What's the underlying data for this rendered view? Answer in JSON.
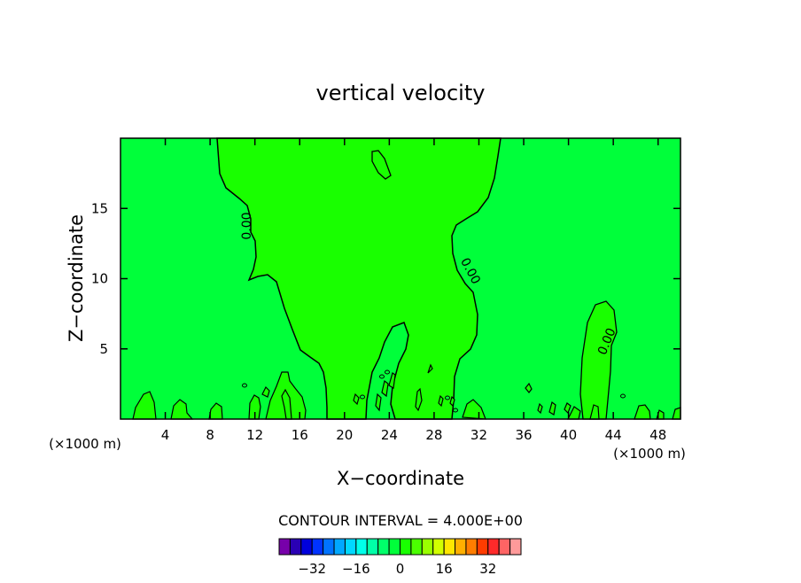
{
  "chart_data": {
    "type": "contour",
    "title": "vertical velocity",
    "xlabel": "X−coordinate",
    "ylabel": "Z−coordinate",
    "x_scale_note": "(×1000 m)",
    "x_scale_note_right": "(×1000 m)",
    "xlim": [
      0,
      50
    ],
    "ylim": [
      0,
      20
    ],
    "x_ticks": [
      4,
      8,
      12,
      16,
      20,
      24,
      28,
      32,
      36,
      40,
      44,
      48
    ],
    "y_ticks": [
      5,
      10,
      15
    ],
    "contour_interval_text": "CONTOUR INTERVAL = 4.000E+00",
    "contour_labels": [
      "0.00",
      "0.00",
      "0.00"
    ],
    "colorbar": {
      "ticks": [
        -32,
        -16,
        0,
        16,
        32
      ],
      "colors": [
        "#7700aa",
        "#2a00b4",
        "#0000dc",
        "#0033ff",
        "#0073ff",
        "#00a8ff",
        "#00d8ff",
        "#00ffea",
        "#00ffa8",
        "#00ff6a",
        "#00ff3a",
        "#19ff00",
        "#4bff00",
        "#9aff00",
        "#d2ff00",
        "#ffe600",
        "#ffb000",
        "#ff7d00",
        "#ff3c00",
        "#ff2a2a",
        "#ff6464",
        "#ff9a9a"
      ]
    },
    "fill_colors": {
      "negative": "#00ff3a",
      "positive": "#19ff00"
    }
  }
}
